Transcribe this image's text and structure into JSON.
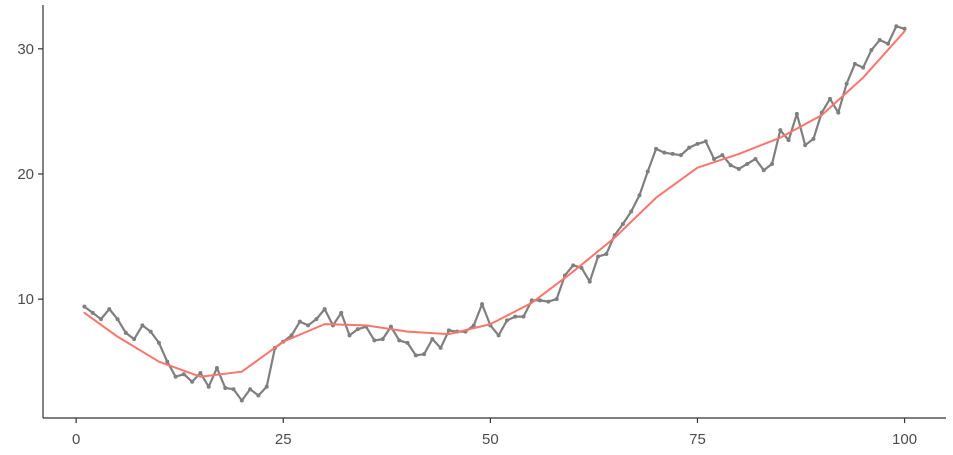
{
  "chart_data": {
    "type": "line",
    "title": "",
    "xlabel": "",
    "ylabel": "",
    "xlim": [
      -4,
      105
    ],
    "ylim": [
      0.5,
      33.5
    ],
    "x_ticks": [
      0,
      25,
      50,
      75,
      100
    ],
    "y_ticks": [
      10,
      20,
      30
    ],
    "grid": false,
    "legend": "none",
    "series": [
      {
        "role": "observed",
        "color": "#7f7f7f",
        "markers": true,
        "x": [
          1,
          2,
          3,
          4,
          5,
          6,
          7,
          8,
          9,
          10,
          11,
          12,
          13,
          14,
          15,
          16,
          17,
          18,
          19,
          20,
          21,
          22,
          23,
          24,
          25,
          26,
          27,
          28,
          29,
          30,
          31,
          32,
          33,
          34,
          35,
          36,
          37,
          38,
          39,
          40,
          41,
          42,
          43,
          44,
          45,
          46,
          47,
          48,
          49,
          50,
          51,
          52,
          53,
          54,
          55,
          56,
          57,
          58,
          59,
          60,
          61,
          62,
          63,
          64,
          65,
          66,
          67,
          68,
          69,
          70,
          71,
          72,
          73,
          74,
          75,
          76,
          77,
          78,
          79,
          80,
          81,
          82,
          83,
          84,
          85,
          86,
          87,
          88,
          89,
          90,
          91,
          92,
          93,
          94,
          95,
          96,
          97,
          98,
          99,
          100
        ],
        "values": [
          9.4,
          8.9,
          8.4,
          9.2,
          8.4,
          7.3,
          6.8,
          7.9,
          7.4,
          6.5,
          5.0,
          3.8,
          4.0,
          3.4,
          4.1,
          3.0,
          4.5,
          2.9,
          2.8,
          1.9,
          2.8,
          2.3,
          3.0,
          6.1,
          6.6,
          7.1,
          8.2,
          7.9,
          8.4,
          9.2,
          7.9,
          8.9,
          7.1,
          7.6,
          7.8,
          6.7,
          6.8,
          7.8,
          6.7,
          6.5,
          5.5,
          5.6,
          6.8,
          6.1,
          7.5,
          7.4,
          7.4,
          7.9,
          9.6,
          7.9,
          7.1,
          8.3,
          8.6,
          8.6,
          9.9,
          9.9,
          9.8,
          10.0,
          11.9,
          12.7,
          12.5,
          11.4,
          13.4,
          13.6,
          15.1,
          16.0,
          17.0,
          18.3,
          20.2,
          22.0,
          21.7,
          21.6,
          21.5,
          22.1,
          22.4,
          22.6,
          21.2,
          21.5,
          20.7,
          20.4,
          20.8,
          21.2,
          20.3,
          20.8,
          23.5,
          22.7,
          24.8,
          22.3,
          22.8,
          24.9,
          26.0,
          24.9,
          27.2,
          28.8,
          28.5,
          29.9,
          30.7,
          30.4,
          31.8,
          31.6
        ]
      },
      {
        "role": "smooth",
        "color": "#f8766d",
        "markers": false,
        "x": [
          1,
          5,
          10,
          15,
          20,
          25,
          30,
          35,
          40,
          45,
          50,
          55,
          60,
          65,
          70,
          75,
          80,
          85,
          90,
          95,
          100
        ],
        "values": [
          8.9,
          7.0,
          5.0,
          3.8,
          4.2,
          6.6,
          8.0,
          7.9,
          7.4,
          7.2,
          8.0,
          9.7,
          12.2,
          14.9,
          18.1,
          20.5,
          21.6,
          22.9,
          24.7,
          27.7,
          31.4
        ]
      }
    ]
  }
}
